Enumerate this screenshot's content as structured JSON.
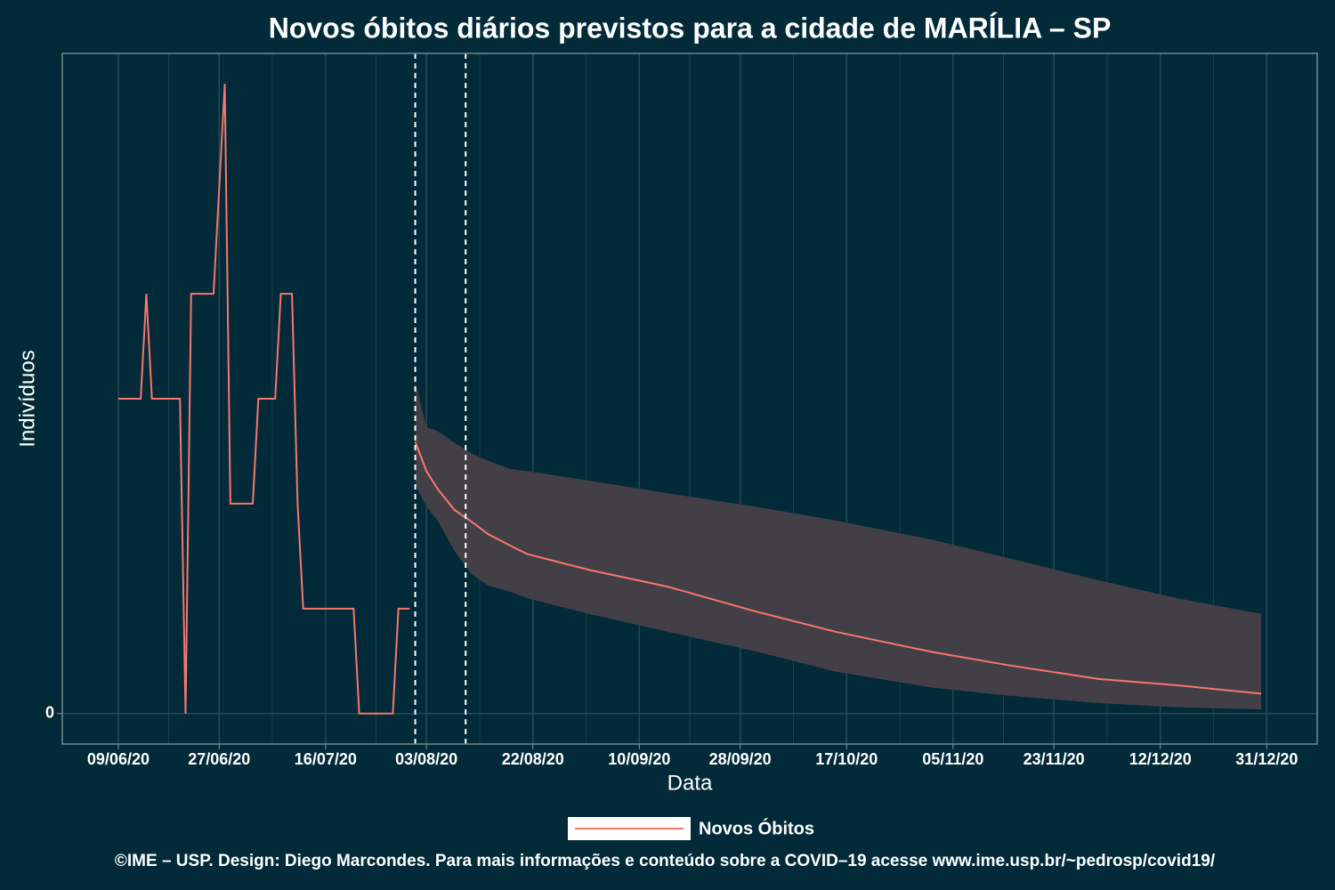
{
  "chart_data": {
    "type": "line",
    "title": "Novos óbitos diários previstos para a cidade de MARÍLIA – SP",
    "x_label": "Data",
    "y_label": "Indivíduos",
    "caption": "©IME – USP. Design: Diego Marcondes. Para mais informações e conteúdo sobre a COVID–19 acesse www.ime.usp.br/~pedrosp/covid19/",
    "series": [
      {
        "name": "Novos Óbitos",
        "color": "#f8766d",
        "x": [
          "2020-06-09",
          "2020-06-13",
          "2020-06-14",
          "2020-06-15",
          "2020-06-20",
          "2020-06-21",
          "2020-06-22",
          "2020-06-26",
          "2020-06-28",
          "2020-06-29",
          "2020-07-03",
          "2020-07-04",
          "2020-07-07",
          "2020-07-08",
          "2020-07-10",
          "2020-07-11",
          "2020-07-12",
          "2020-07-21",
          "2020-07-22",
          "2020-07-28",
          "2020-07-29",
          "2020-07-31"
        ],
        "values": [
          3,
          3,
          4,
          3,
          3,
          0,
          4,
          4,
          6,
          2,
          2,
          3,
          3,
          4,
          4,
          2,
          1,
          1,
          0,
          0,
          1,
          1
        ]
      }
    ],
    "forecast": {
      "color": "#f8766d",
      "band_color": "#423f46",
      "x": [
        "2020-08-01",
        "2020-08-03",
        "2020-08-05",
        "2020-08-08",
        "2020-08-11",
        "2020-08-14",
        "2020-08-18",
        "2020-08-21",
        "2020-09-01",
        "2020-09-15",
        "2020-10-01",
        "2020-10-15",
        "2020-11-01",
        "2020-11-15",
        "2020-12-01",
        "2020-12-15",
        "2020-12-30"
      ],
      "values": [
        2.59,
        2.31,
        2.14,
        1.94,
        1.83,
        1.71,
        1.6,
        1.52,
        1.37,
        1.21,
        0.97,
        0.78,
        0.59,
        0.46,
        0.33,
        0.27,
        0.19
      ],
      "lower": [
        2.18,
        1.97,
        1.84,
        1.55,
        1.33,
        1.22,
        1.16,
        1.1,
        0.95,
        0.78,
        0.59,
        0.4,
        0.25,
        0.17,
        0.1,
        0.06,
        0.04
      ],
      "upper": [
        3.16,
        2.73,
        2.69,
        2.58,
        2.48,
        2.41,
        2.33,
        2.31,
        2.22,
        2.1,
        1.97,
        1.84,
        1.66,
        1.48,
        1.27,
        1.1,
        0.95
      ]
    },
    "vlines": [
      "2020-08-01",
      "2020-08-10"
    ],
    "xlim": [
      "2020-05-30",
      "2021-01-09"
    ],
    "xticks": [
      {
        "value": "2020-06-09",
        "label": "09/06/20"
      },
      {
        "value": "2020-06-27",
        "label": "27/06/20"
      },
      {
        "value": "2020-07-16",
        "label": "16/07/20"
      },
      {
        "value": "2020-08-03",
        "label": "03/08/20"
      },
      {
        "value": "2020-08-22",
        "label": "22/08/20"
      },
      {
        "value": "2020-09-10",
        "label": "10/09/20"
      },
      {
        "value": "2020-09-28",
        "label": "28/09/20"
      },
      {
        "value": "2020-10-17",
        "label": "17/10/20"
      },
      {
        "value": "2020-11-05",
        "label": "05/11/20"
      },
      {
        "value": "2020-11-23",
        "label": "23/11/20"
      },
      {
        "value": "2020-12-12",
        "label": "12/12/20"
      },
      {
        "value": "2020-12-31",
        "label": "31/12/20"
      }
    ],
    "ylim": [
      -0.29,
      6.29
    ],
    "yticks": [
      0
    ],
    "grid": true,
    "legend": "bottom"
  }
}
